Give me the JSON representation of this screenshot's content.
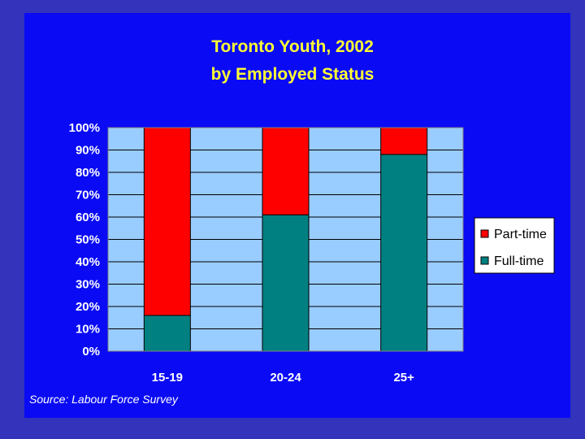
{
  "slide": {
    "background_color": "#0a0af5",
    "outer_color": "#3333bb",
    "source_note": "Source: Labour Force Survey"
  },
  "chart_data": {
    "type": "bar",
    "stacked": true,
    "title_lines": [
      "Toronto Youth, 2002",
      "by Employed Status"
    ],
    "categories": [
      "15-19",
      "20-24",
      "25+"
    ],
    "series": [
      {
        "name": "Full-time",
        "values": [
          16,
          61,
          88
        ],
        "color": "#008080"
      },
      {
        "name": "Part-time",
        "values": [
          84,
          39,
          12
        ],
        "color": "#ff0000"
      }
    ],
    "ylim": [
      0,
      100
    ],
    "y_ticks": [
      "0%",
      "10%",
      "20%",
      "30%",
      "40%",
      "50%",
      "60%",
      "70%",
      "80%",
      "90%",
      "100%"
    ],
    "y_unit": "%",
    "grid": true,
    "plot_background": "#99ccff",
    "legend_position": "right",
    "legend_order": [
      "Part-time",
      "Full-time"
    ]
  }
}
